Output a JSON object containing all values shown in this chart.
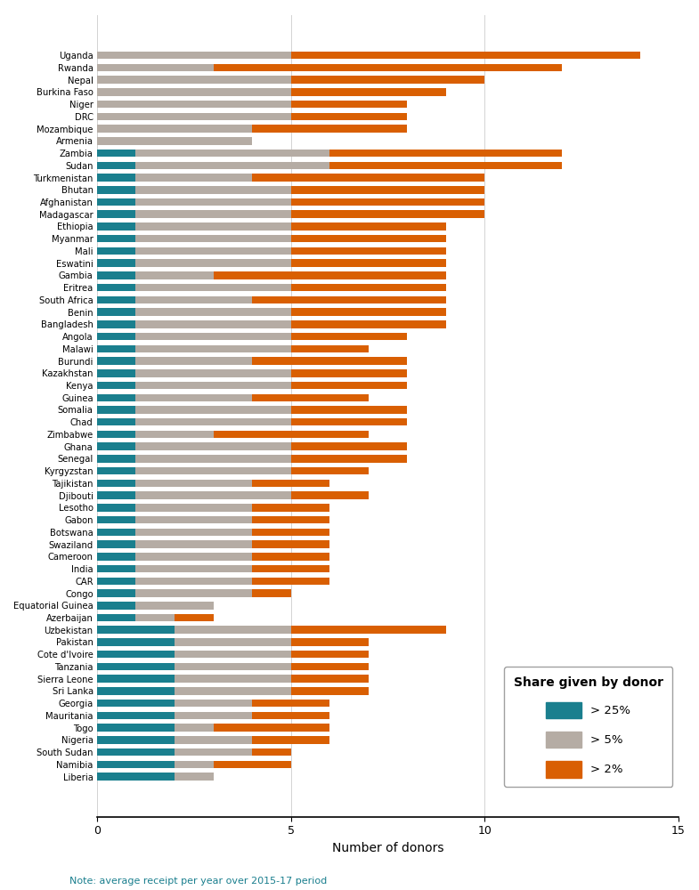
{
  "chart_data": [
    [
      "Uganda",
      0,
      5,
      9
    ],
    [
      "Rwanda",
      0,
      3,
      9
    ],
    [
      "Nepal",
      0,
      5,
      5
    ],
    [
      "Burkina Faso",
      0,
      5,
      4
    ],
    [
      "Niger",
      0,
      5,
      3
    ],
    [
      "DRC",
      0,
      5,
      3
    ],
    [
      "Mozambique",
      0,
      4,
      4
    ],
    [
      "Armenia",
      0,
      4,
      0
    ],
    [
      "Zambia",
      1,
      5,
      6
    ],
    [
      "Sudan",
      1,
      5,
      6
    ],
    [
      "Turkmenistan",
      1,
      3,
      6
    ],
    [
      "Bhutan",
      1,
      4,
      5
    ],
    [
      "Afghanistan",
      1,
      4,
      5
    ],
    [
      "Madagascar",
      1,
      4,
      5
    ],
    [
      "Ethiopia",
      1,
      4,
      4
    ],
    [
      "Myanmar",
      1,
      4,
      4
    ],
    [
      "Mali",
      1,
      4,
      4
    ],
    [
      "Eswatini",
      1,
      4,
      4
    ],
    [
      "Gambia",
      1,
      2,
      6
    ],
    [
      "Eritrea",
      1,
      4,
      4
    ],
    [
      "South Africa",
      1,
      3,
      5
    ],
    [
      "Benin",
      1,
      4,
      4
    ],
    [
      "Bangladesh",
      1,
      4,
      4
    ],
    [
      "Angola",
      1,
      4,
      3
    ],
    [
      "Malawi",
      1,
      4,
      2
    ],
    [
      "Burundi",
      1,
      3,
      4
    ],
    [
      "Kazakhstan",
      1,
      4,
      3
    ],
    [
      "Kenya",
      1,
      4,
      3
    ],
    [
      "Guinea",
      1,
      3,
      3
    ],
    [
      "Somalia",
      1,
      4,
      3
    ],
    [
      "Chad",
      1,
      4,
      3
    ],
    [
      "Zimbabwe",
      1,
      2,
      4
    ],
    [
      "Ghana",
      1,
      4,
      3
    ],
    [
      "Senegal",
      1,
      4,
      3
    ],
    [
      "Kyrgyzstan",
      1,
      4,
      2
    ],
    [
      "Tajikistan",
      1,
      3,
      2
    ],
    [
      "Djibouti",
      1,
      4,
      2
    ],
    [
      "Lesotho",
      1,
      3,
      2
    ],
    [
      "Gabon",
      1,
      3,
      2
    ],
    [
      "Botswana",
      1,
      3,
      2
    ],
    [
      "Swaziland",
      1,
      3,
      2
    ],
    [
      "Cameroon",
      1,
      3,
      2
    ],
    [
      "India",
      1,
      3,
      2
    ],
    [
      "CAR",
      1,
      3,
      2
    ],
    [
      "Congo",
      1,
      3,
      1
    ],
    [
      "Equatorial Guinea",
      1,
      2,
      0
    ],
    [
      "Azerbaijan",
      1,
      1,
      1
    ],
    [
      "Uzbekistan",
      2,
      3,
      4
    ],
    [
      "Pakistan",
      2,
      3,
      2
    ],
    [
      "Cote d'Ivoire",
      2,
      3,
      2
    ],
    [
      "Tanzania",
      2,
      3,
      2
    ],
    [
      "Sierra Leone",
      2,
      3,
      2
    ],
    [
      "Sri Lanka",
      2,
      3,
      2
    ],
    [
      "Georgia",
      2,
      2,
      2
    ],
    [
      "Mauritania",
      2,
      2,
      2
    ],
    [
      "Togo",
      2,
      1,
      3
    ],
    [
      "Nigeria",
      2,
      2,
      2
    ],
    [
      "South Sudan",
      2,
      2,
      1
    ],
    [
      "Namibia",
      2,
      1,
      2
    ],
    [
      "Liberia",
      2,
      1,
      0
    ]
  ],
  "color_25": "#1a7f8e",
  "color_5": "#b5aca4",
  "color_2": "#d95f02",
  "xlabel": "Number of donors",
  "note": "Note: average receipt per year over 2015-17 period",
  "note_color": "#1a7f8e",
  "xlim": [
    0,
    15
  ],
  "xticks": [
    0,
    5,
    10,
    15
  ],
  "legend_title": "Share given by donor",
  "legend_labels": [
    "> 25%",
    "> 5%",
    "> 2%"
  ]
}
